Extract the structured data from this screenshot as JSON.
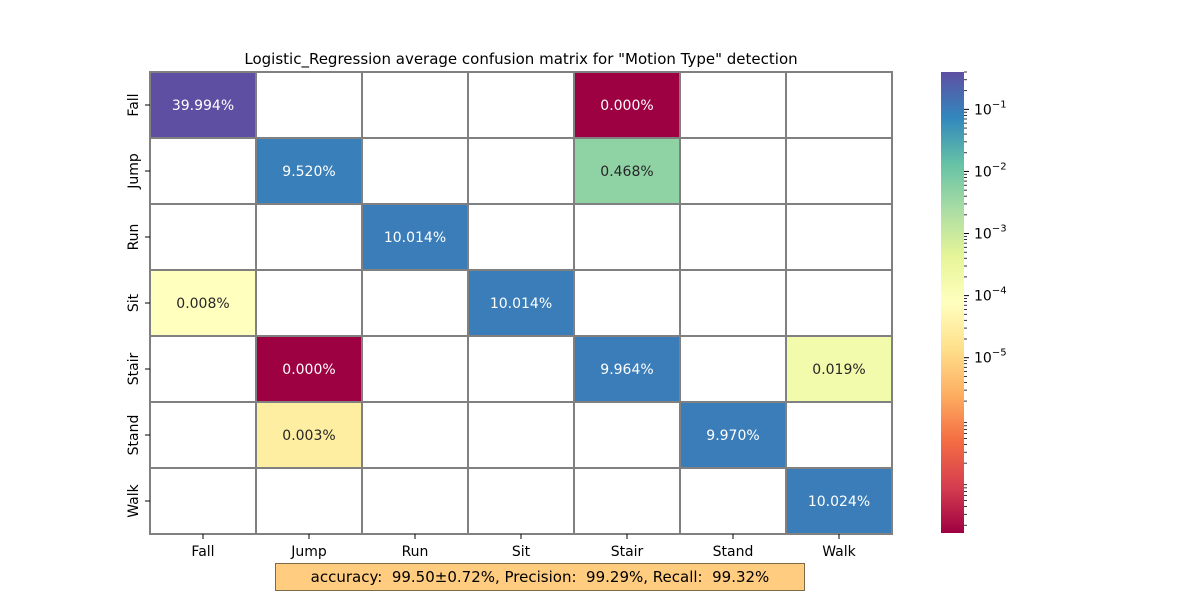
{
  "chart_data": {
    "type": "heatmap",
    "title": "Logistic_Regression average confusion matrix for \"Motion Type\" detection",
    "rows": [
      "Fall",
      "Jump",
      "Run",
      "Sit",
      "Stair",
      "Stand",
      "Walk"
    ],
    "columns": [
      "Fall",
      "Jump",
      "Run",
      "Sit",
      "Stair",
      "Stand",
      "Walk"
    ],
    "cells": [
      {
        "row": "Fall",
        "col": "Fall",
        "value": 39.994,
        "label": "39.994%"
      },
      {
        "row": "Fall",
        "col": "Stair",
        "value": 1.5e-06,
        "label": "0.000%"
      },
      {
        "row": "Jump",
        "col": "Jump",
        "value": 9.52,
        "label": "9.520%"
      },
      {
        "row": "Jump",
        "col": "Stair",
        "value": 0.468,
        "label": "0.468%"
      },
      {
        "row": "Run",
        "col": "Run",
        "value": 10.014,
        "label": "10.014%"
      },
      {
        "row": "Sit",
        "col": "Fall",
        "value": 0.008,
        "label": "0.008%"
      },
      {
        "row": "Sit",
        "col": "Sit",
        "value": 10.014,
        "label": "10.014%"
      },
      {
        "row": "Stair",
        "col": "Jump",
        "value": 1.5e-06,
        "label": "0.000%"
      },
      {
        "row": "Stair",
        "col": "Stair",
        "value": 9.964,
        "label": "9.964%"
      },
      {
        "row": "Stair",
        "col": "Walk",
        "value": 0.019,
        "label": "0.019%"
      },
      {
        "row": "Stand",
        "col": "Jump",
        "value": 0.003,
        "label": "0.003%"
      },
      {
        "row": "Stand",
        "col": "Stand",
        "value": 9.97,
        "label": "9.970%"
      },
      {
        "row": "Walk",
        "col": "Walk",
        "value": 10.024,
        "label": "10.024%"
      }
    ],
    "colorbar": {
      "scale": "log",
      "colormap": "Spectral",
      "ticks": [
        {
          "exp": -1,
          "label": "10"
        },
        {
          "exp": -2,
          "label": "10"
        },
        {
          "exp": -3,
          "label": "10"
        },
        {
          "exp": -4,
          "label": "10"
        },
        {
          "exp": -5,
          "label": "10"
        }
      ],
      "tick_exponent_labels": [
        "−1",
        "−2",
        "−3",
        "−4",
        "−5"
      ]
    },
    "grid": true
  },
  "summary": "accuracy:  99.50±0.72%, Precision:  99.29%, Recall:  99.32%",
  "colors": {
    "cell_border": "#808080",
    "empty_cell": "#ffffff",
    "summary_bg": "#ffcc80"
  }
}
